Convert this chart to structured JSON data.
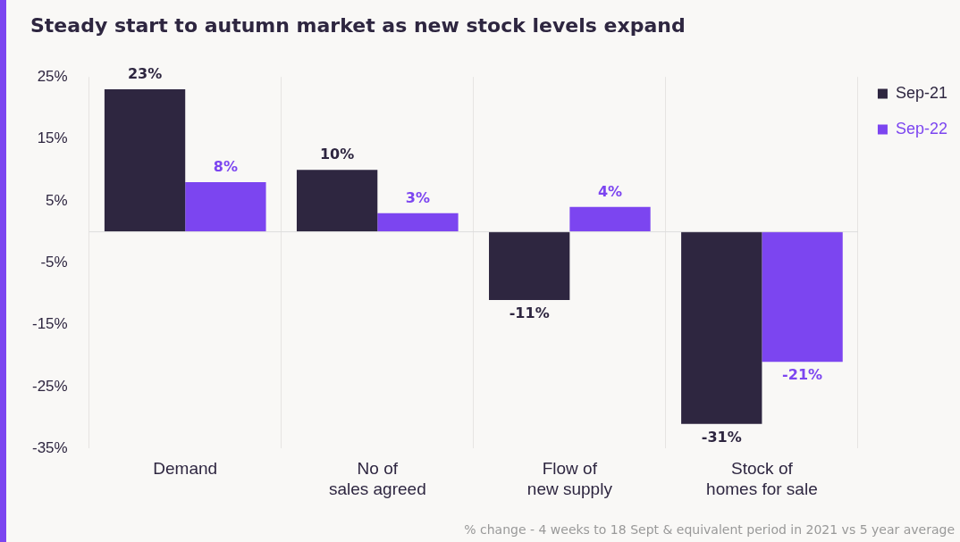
{
  "chart_data": {
    "type": "bar",
    "title": "Steady start to autumn market as new stock levels expand",
    "categories": [
      "Demand",
      "No of\nsales agreed",
      "Flow of\nnew supply",
      "Stock of\nhomes for sale"
    ],
    "series": [
      {
        "name": "Sep-21",
        "color": "#2e2640",
        "values": [
          23,
          10,
          -11,
          -31
        ],
        "value_labels": [
          "23%",
          "10%",
          "-11%",
          "-31%"
        ]
      },
      {
        "name": "Sep-22",
        "color": "#7c45f0",
        "values": [
          8,
          3,
          4,
          -21
        ],
        "value_labels": [
          "8%",
          "3%",
          "4%",
          "-21%"
        ]
      }
    ],
    "ylim": [
      -35,
      25
    ],
    "yticks": [
      {
        "value": 25,
        "label": "25%"
      },
      {
        "value": 15,
        "label": "15%"
      },
      {
        "value": 5,
        "label": "5%"
      },
      {
        "value": -5,
        "label": "-5%"
      },
      {
        "value": -15,
        "label": "-15%"
      },
      {
        "value": -25,
        "label": "-25%"
      },
      {
        "value": -35,
        "label": "-35%"
      }
    ],
    "grid": "x",
    "legend": "top right",
    "annotations": [
      "% change - 4 weeks to 18 Sept & equivalent period in 2021 vs 5 year average"
    ]
  }
}
